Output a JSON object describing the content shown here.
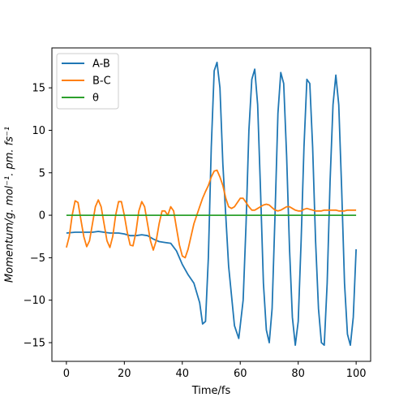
{
  "chart_data": {
    "type": "line",
    "title": "",
    "xlabel": "Time/fs",
    "ylabel": "Momentum/g. mol⁻¹. pm. fs⁻¹",
    "xlim": [
      -5,
      105
    ],
    "ylim": [
      -17.2,
      19.7
    ],
    "xticks": [
      0,
      20,
      40,
      60,
      80,
      100
    ],
    "yticks": [
      -15,
      -10,
      -5,
      0,
      5,
      10,
      15
    ],
    "xtick_labels": [
      "0",
      "20",
      "40",
      "60",
      "80",
      "100"
    ],
    "ytick_labels": [
      "−15",
      "−10",
      "−5",
      "0",
      "5",
      "10",
      "15"
    ],
    "grid": false,
    "legend_position": "top-left",
    "series": [
      {
        "name": "A-B",
        "color": "#1f77b4",
        "points": [
          [
            0,
            -2.1
          ],
          [
            3,
            -2.0
          ],
          [
            6,
            -2.0
          ],
          [
            9,
            -2.0
          ],
          [
            11,
            -1.9
          ],
          [
            13,
            -2.0
          ],
          [
            15,
            -2.1
          ],
          [
            18,
            -2.1
          ],
          [
            20,
            -2.2
          ],
          [
            22,
            -2.4
          ],
          [
            24,
            -2.4
          ],
          [
            26,
            -2.3
          ],
          [
            28,
            -2.4
          ],
          [
            30,
            -2.8
          ],
          [
            32,
            -3.1
          ],
          [
            34,
            -3.2
          ],
          [
            36,
            -3.3
          ],
          [
            38,
            -4.2
          ],
          [
            40,
            -5.8
          ],
          [
            42,
            -7.0
          ],
          [
            44,
            -8.0
          ],
          [
            46,
            -10.3
          ],
          [
            47,
            -12.8
          ],
          [
            48,
            -12.5
          ],
          [
            49,
            -5.0
          ],
          [
            50,
            8.0
          ],
          [
            51,
            17.0
          ],
          [
            52,
            18.0
          ],
          [
            53,
            15.0
          ],
          [
            54,
            6.0
          ],
          [
            56,
            -6.0
          ],
          [
            58,
            -13.0
          ],
          [
            59.5,
            -14.5
          ],
          [
            61,
            -10.0
          ],
          [
            62,
            -1.0
          ],
          [
            63,
            10.0
          ],
          [
            64,
            16.0
          ],
          [
            65,
            17.2
          ],
          [
            66,
            13.0
          ],
          [
            67,
            3.0
          ],
          [
            68,
            -8.0
          ],
          [
            69,
            -13.5
          ],
          [
            70,
            -15.0
          ],
          [
            71,
            -11.0
          ],
          [
            72,
            0.0
          ],
          [
            73,
            12.0
          ],
          [
            74,
            16.8
          ],
          [
            75,
            15.5
          ],
          [
            76,
            7.0
          ],
          [
            77,
            -4.0
          ],
          [
            78,
            -12.0
          ],
          [
            79,
            -15.3
          ],
          [
            80,
            -12.5
          ],
          [
            81,
            -3.0
          ],
          [
            82,
            8.0
          ],
          [
            83,
            16.0
          ],
          [
            84,
            15.5
          ],
          [
            85,
            8.0
          ],
          [
            86,
            -3.0
          ],
          [
            87,
            -11.0
          ],
          [
            88,
            -15.0
          ],
          [
            89,
            -15.3
          ],
          [
            90,
            -8.0
          ],
          [
            91,
            4.0
          ],
          [
            92,
            13.0
          ],
          [
            93,
            16.5
          ],
          [
            94,
            13.0
          ],
          [
            95,
            3.0
          ],
          [
            96,
            -8.0
          ],
          [
            97,
            -14.0
          ],
          [
            98,
            -15.3
          ],
          [
            99,
            -12.0
          ],
          [
            100,
            -4.0
          ]
        ]
      },
      {
        "name": "B-C",
        "color": "#ff7f0e",
        "points": [
          [
            0,
            -3.8
          ],
          [
            1,
            -2.5
          ],
          [
            2,
            0.0
          ],
          [
            3,
            1.7
          ],
          [
            4,
            1.5
          ],
          [
            5,
            -0.5
          ],
          [
            6,
            -2.5
          ],
          [
            7,
            -3.7
          ],
          [
            8,
            -3.0
          ],
          [
            9,
            -1.0
          ],
          [
            10,
            1.0
          ],
          [
            11,
            1.8
          ],
          [
            12,
            1.0
          ],
          [
            13,
            -1.0
          ],
          [
            14,
            -3.0
          ],
          [
            15,
            -3.8
          ],
          [
            16,
            -2.5
          ],
          [
            17,
            0.0
          ],
          [
            18,
            1.6
          ],
          [
            19,
            1.6
          ],
          [
            20,
            0.0
          ],
          [
            21,
            -2.0
          ],
          [
            22,
            -3.5
          ],
          [
            23,
            -3.6
          ],
          [
            24,
            -2.0
          ],
          [
            25,
            0.5
          ],
          [
            26,
            1.6
          ],
          [
            27,
            1.0
          ],
          [
            28,
            -1.0
          ],
          [
            29,
            -3.0
          ],
          [
            30,
            -4.1
          ],
          [
            31,
            -3.0
          ],
          [
            32,
            -1.0
          ],
          [
            33,
            0.5
          ],
          [
            34,
            0.5
          ],
          [
            35,
            0.0
          ],
          [
            36,
            1.0
          ],
          [
            37,
            0.5
          ],
          [
            38,
            -1.5
          ],
          [
            39,
            -3.5
          ],
          [
            40,
            -4.8
          ],
          [
            41,
            -5.0
          ],
          [
            42,
            -4.0
          ],
          [
            43,
            -2.5
          ],
          [
            44,
            -1.0
          ],
          [
            45,
            0.0
          ],
          [
            46,
            1.0
          ],
          [
            47,
            2.0
          ],
          [
            48,
            2.8
          ],
          [
            49,
            3.5
          ],
          [
            50,
            4.5
          ],
          [
            51,
            5.2
          ],
          [
            52,
            5.3
          ],
          [
            53,
            4.5
          ],
          [
            54,
            3.5
          ],
          [
            55,
            2.0
          ],
          [
            56,
            1.0
          ],
          [
            57,
            0.8
          ],
          [
            58,
            1.0
          ],
          [
            59,
            1.5
          ],
          [
            60,
            2.0
          ],
          [
            61,
            2.0
          ],
          [
            62,
            1.5
          ],
          [
            63,
            1.0
          ],
          [
            64,
            0.6
          ],
          [
            65,
            0.6
          ],
          [
            66,
            0.8
          ],
          [
            67,
            1.0
          ],
          [
            68,
            1.2
          ],
          [
            69,
            1.3
          ],
          [
            70,
            1.2
          ],
          [
            71,
            0.9
          ],
          [
            72,
            0.6
          ],
          [
            73,
            0.5
          ],
          [
            74,
            0.6
          ],
          [
            75,
            0.8
          ],
          [
            76,
            1.0
          ],
          [
            77,
            1.0
          ],
          [
            78,
            0.8
          ],
          [
            79,
            0.6
          ],
          [
            80,
            0.5
          ],
          [
            81,
            0.5
          ],
          [
            82,
            0.7
          ],
          [
            83,
            0.8
          ],
          [
            84,
            0.7
          ],
          [
            85,
            0.6
          ],
          [
            86,
            0.5
          ],
          [
            87,
            0.5
          ],
          [
            88,
            0.5
          ],
          [
            89,
            0.6
          ],
          [
            90,
            0.6
          ],
          [
            91,
            0.6
          ],
          [
            92,
            0.6
          ],
          [
            93,
            0.6
          ],
          [
            94,
            0.5
          ],
          [
            95,
            0.5
          ],
          [
            96,
            0.5
          ],
          [
            97,
            0.6
          ],
          [
            98,
            0.6
          ],
          [
            99,
            0.6
          ],
          [
            100,
            0.6
          ]
        ]
      },
      {
        "name": "θ",
        "color": "#2ca02c",
        "points": [
          [
            0,
            0
          ],
          [
            100,
            0
          ]
        ]
      }
    ]
  }
}
